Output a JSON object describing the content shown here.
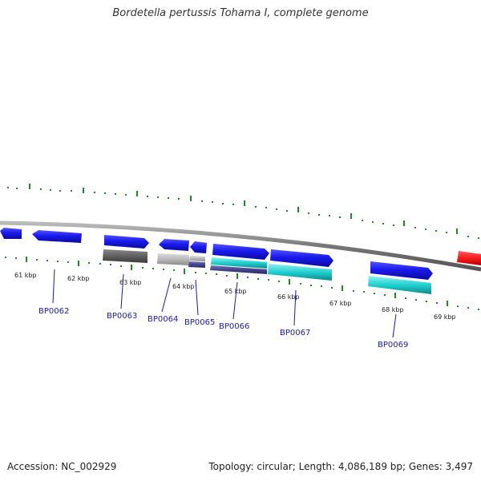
{
  "title": "Bordetella pertussis Tohama I, complete genome",
  "footer": {
    "accession": "Accession: NC_002929",
    "stats": "Topology: circular; Length: 4,086,189 bp; Genes: 3,497"
  },
  "scale": {
    "kbp_labels": [
      "61 kbp",
      "62 kbp",
      "63 kbp",
      "64 kbp",
      "65 kbp",
      "66 kbp",
      "67 kbp",
      "68 kbp",
      "69 kbp"
    ]
  },
  "genes": [
    {
      "id": "BP0062",
      "strand": "reverse",
      "color": "#1a1aee"
    },
    {
      "id": "BP0063",
      "strand": "forward",
      "color": "#1a1aee"
    },
    {
      "id": "BP0064",
      "strand": "reverse",
      "color": "#1a1aee"
    },
    {
      "id": "BP0065",
      "strand": "reverse",
      "color": "#1a1aee"
    },
    {
      "id": "BP0066",
      "strand": "forward",
      "color": "#1a1aee"
    },
    {
      "id": "BP0067",
      "strand": "forward",
      "color": "#1a1aee"
    },
    {
      "id": "BP0069",
      "strand": "forward",
      "color": "#1a1aee"
    }
  ],
  "feature_colors": {
    "cds": "#1a1aee",
    "rna": "#ff1a1a",
    "hit_dark": "#555555",
    "hit_light": "#b0b0b0",
    "hit_cyan": "#20d0d0",
    "hit_navy": "#44448a"
  }
}
